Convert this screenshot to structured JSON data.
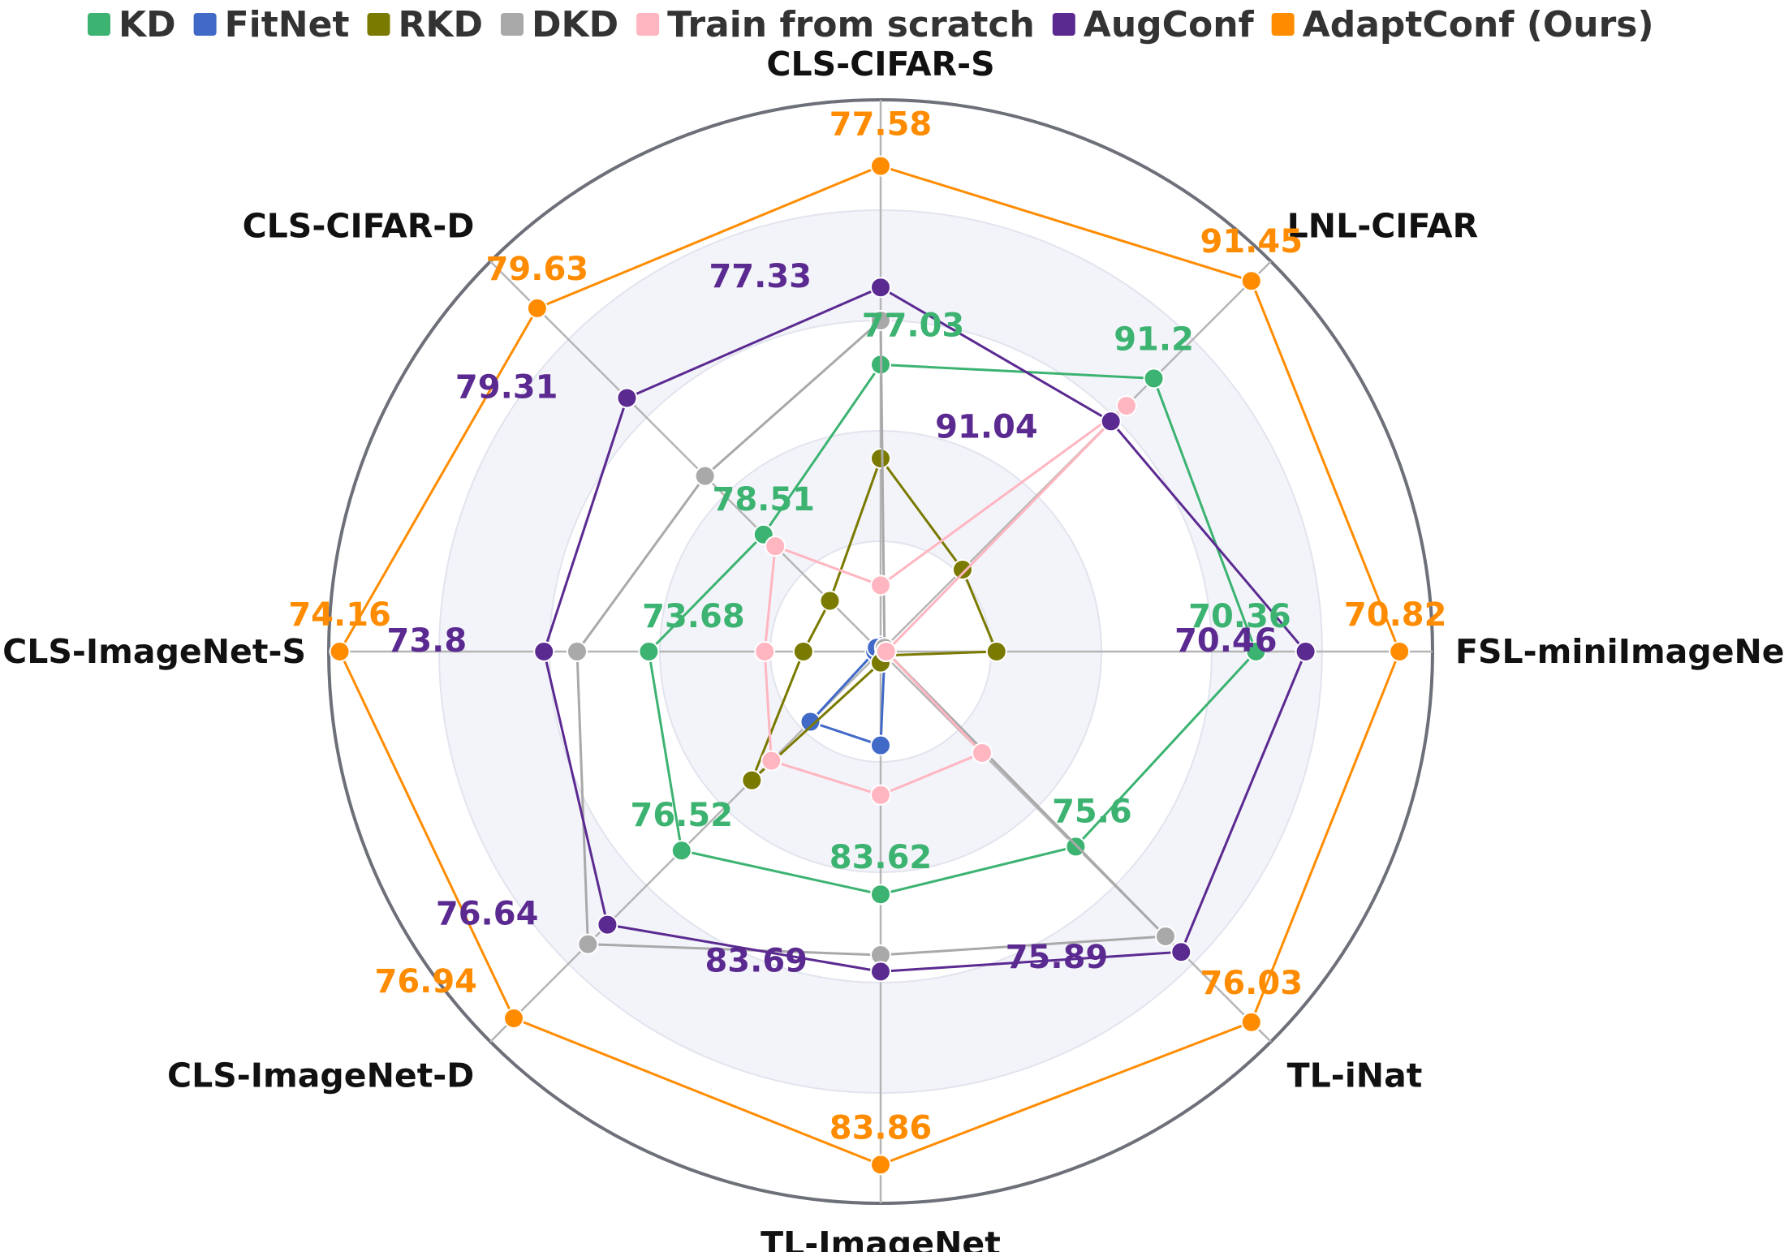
{
  "chart_data": {
    "type": "radar",
    "title": "",
    "axes": [
      "CLS-CIFAR-S",
      "LNL-CIFAR",
      "FSL-miniImageNet",
      "TL-iNat",
      "TL-ImageNet",
      "CLS-ImageNet-D",
      "CLS-ImageNet-S",
      "CLS-CIFAR-D"
    ],
    "axis_display_labels": [
      "CLS-CIFAR-S",
      "LNL-CIFAR",
      "FSL-miniImageNe",
      "TL-iNat",
      "TL-ImageNet",
      "CLS-ImageNet-D",
      "CLS-ImageNet-S",
      "CLS-CIFAR-D"
    ],
    "legend_position": "top",
    "grid": true,
    "series": [
      {
        "name": "KD",
        "color": "#3cb371",
        "normalized": [
          0.52,
          0.7,
          0.68,
          0.5,
          0.44,
          0.51,
          0.42,
          0.3
        ],
        "labels": [
          "77.03",
          "91.2",
          "70.36",
          "75.6",
          "83.62",
          "76.52",
          "73.68",
          "78.51"
        ],
        "label_offsets": [
          [
            40,
            -35
          ],
          [
            0,
            -35
          ],
          [
            -20,
            -30
          ],
          [
            20,
            -30
          ],
          [
            0,
            -32
          ],
          [
            0,
            -30
          ],
          [
            55,
            -30
          ],
          [
            0,
            -30
          ]
        ]
      },
      {
        "name": "FitNet",
        "color": "#4169c8",
        "normalized": [
          0.01,
          0.01,
          0.01,
          0.01,
          0.17,
          0.18,
          0.01,
          0.01
        ],
        "labels": []
      },
      {
        "name": "RKD",
        "color": "#7a7a00",
        "normalized": [
          0.35,
          0.21,
          0.21,
          0.01,
          0.02,
          0.33,
          0.14,
          0.13
        ],
        "labels": []
      },
      {
        "name": "DKD",
        "color": "#a9a9a9",
        "normalized": [
          0.6,
          0.01,
          0.01,
          0.73,
          0.55,
          0.75,
          0.55,
          0.45
        ],
        "labels": []
      },
      {
        "name": "Train from scratch",
        "color": "#ffb6c1",
        "normalized": [
          0.12,
          0.63,
          0.01,
          0.26,
          0.26,
          0.28,
          0.21,
          0.27
        ],
        "labels": []
      },
      {
        "name": "AugConf",
        "color": "#5b2a91",
        "normalized": [
          0.66,
          0.59,
          0.77,
          0.77,
          0.58,
          0.7,
          0.61,
          0.65
        ],
        "labels": [
          "77.33",
          "91.04",
          "70.46",
          "75.89",
          "83.69",
          "76.64",
          "73.8",
          "79.31"
        ],
        "label_offsets": [
          [
            -85,
            0
          ],
          [
            -90,
            20
          ],
          [
            -35,
            0
          ],
          [
            -90,
            20
          ],
          [
            -90,
            0
          ],
          [
            -85,
            0
          ],
          [
            -95,
            0
          ],
          [
            -85,
            0
          ]
        ]
      },
      {
        "name": "AdaptConf (Ours)",
        "color": "#ff8c00",
        "normalized": [
          0.88,
          0.95,
          0.94,
          0.95,
          0.93,
          0.94,
          0.98,
          0.88
        ],
        "labels": [
          "77.58",
          "91.45",
          "70.82",
          "76.03",
          "83.86",
          "76.94",
          "74.16",
          "79.63"
        ],
        "label_offsets": [
          [
            0,
            -38
          ],
          [
            0,
            -35
          ],
          [
            -5,
            -32
          ],
          [
            0,
            -35
          ],
          [
            0,
            -32
          ],
          [
            -45,
            -32
          ],
          [
            0,
            -32
          ],
          [
            0,
            -35
          ]
        ]
      }
    ]
  }
}
